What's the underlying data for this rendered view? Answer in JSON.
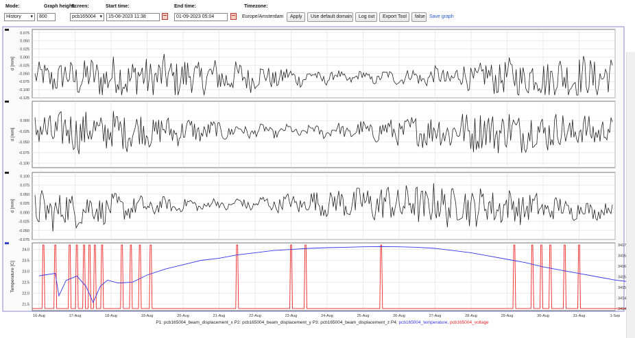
{
  "toolbar": {
    "mode_label": "Mode:",
    "mode_value": "History",
    "graph_height_label": "Graph height:",
    "graph_height_value": "800",
    "screen_label": "Screen:",
    "screen_value": "pcb165004",
    "start_label": "Start time:",
    "start_value": "15-08-2023 11:38",
    "end_label": "End time:",
    "end_value": "01-09-2023 05:04",
    "timezone_label": "Timezone:",
    "timezone_value": "Europe/Amsterdam",
    "apply_label": "Apply",
    "default_domain_label": "Use default domain",
    "logout_label": "Log out",
    "export_label": "Export Tool",
    "false_label": "false",
    "save_graph_label": "Save graph"
  },
  "colors": {
    "displacement": "#222222",
    "temperature": "#3333ee",
    "voltage": "#ee2222",
    "grid": "#dddddd",
    "frame": "#555555"
  },
  "chart_data": [
    {
      "type": "line",
      "series": [
        {
          "name": "P1: pcb165004_beam_displacement_x",
          "values": []
        }
      ],
      "ylabel": "d [mm]",
      "yticks": [
        "0.075",
        "0.050",
        "0.025",
        "0.000",
        "-0.025",
        "-0.050",
        "-0.075",
        "-0.100",
        "-0.125"
      ],
      "ylim": [
        -0.125,
        0.085
      ],
      "grid": true
    },
    {
      "type": "line",
      "series": [
        {
          "name": "P2: pcb165004_beam_displacement_y",
          "values": []
        }
      ],
      "ylabel": "d [mm]",
      "yticks": [
        "0.000",
        "-0.025",
        "-0.050",
        "-0.075",
        "-0.100"
      ],
      "ylim": [
        -0.11,
        0.045
      ],
      "grid": true
    },
    {
      "type": "line",
      "series": [
        {
          "name": "P3: pcb165004_beam_displacement_z",
          "values": []
        }
      ],
      "ylabel": "d [mm]",
      "yticks": [
        "0.100",
        "0.075",
        "0.050",
        "0.025",
        "0.000",
        "-0.025",
        "-0.050",
        "-0.075"
      ],
      "ylim": [
        -0.075,
        0.11
      ],
      "grid": true
    },
    {
      "type": "line",
      "ylabel": "Temperature [C]",
      "y2label": "Voltage [V]",
      "yticks": [
        "24.0",
        "23.5",
        "23.0",
        "22.5",
        "22.0",
        "21.5"
      ],
      "y2ticks": [
        "3417.0",
        "3416.5",
        "3416.0",
        "3415.5",
        "3415.0",
        "3414.5",
        "3414.0"
      ],
      "ylim": [
        21.2,
        24.3
      ],
      "y2lim": [
        3413.9,
        3417.1
      ],
      "xticks": [
        "16-Aug",
        "17-Aug",
        "18-Aug",
        "19-Aug",
        "20-Aug",
        "21-Aug",
        "22-Aug",
        "23-Aug",
        "24-Aug",
        "25-Aug",
        "26-Aug",
        "27-Aug",
        "28-Aug",
        "29-Aug",
        "30-Aug",
        "31-Aug",
        "1-Sep"
      ],
      "series": [
        {
          "name": "P4: pcb165004_temperature",
          "x": [
            0,
            0.2,
            0.45,
            0.55,
            0.75,
            1.05,
            1.3,
            1.5,
            1.7,
            1.9,
            2.2,
            2.6,
            3.0,
            3.5,
            4.0,
            4.5,
            5.0,
            5.5,
            6.0,
            6.5,
            7.0,
            7.5,
            8.0,
            8.5,
            9.0,
            9.5,
            10.0,
            10.5,
            11.0,
            11.5,
            12.0,
            12.5,
            13.0,
            13.5,
            14.0,
            14.5,
            15.0,
            15.5,
            16.0,
            16.5,
            16.9
          ],
          "values": [
            22.7,
            22.8,
            22.9,
            21.9,
            22.6,
            22.8,
            22.3,
            21.7,
            22.4,
            22.6,
            22.5,
            22.6,
            22.9,
            23.1,
            23.3,
            23.5,
            23.6,
            23.75,
            23.85,
            23.95,
            24.0,
            24.05,
            24.08,
            24.1,
            24.12,
            24.13,
            24.12,
            24.1,
            24.05,
            23.95,
            23.85,
            23.7,
            23.55,
            23.4,
            23.2,
            23.05,
            22.9,
            22.75,
            22.6,
            22.5,
            22.45
          ]
        },
        {
          "name": "pcb165004_voltage",
          "spikes": [
            0.12,
            0.45,
            0.85,
            1.05,
            1.25,
            1.4,
            1.55,
            1.75,
            2.3,
            2.55,
            2.8,
            3.1,
            5.5,
            7.0,
            7.4,
            9.5,
            13.2,
            13.7,
            13.95,
            14.2,
            14.6,
            15.0,
            16.8
          ],
          "base": 3414.0,
          "peak": 3417.0
        }
      ],
      "grid": true
    }
  ],
  "legend": {
    "p1": "P1: pcb165004_beam_displacement_x",
    "p2": "P2: pcb165004_beam_displacement_y",
    "p3": "P3: pcb165004_beam_displacement_z",
    "p4": "P4:",
    "p4_temp": "pcb165004_temperature,",
    "p4_volt": "pcb165004_voltage"
  }
}
